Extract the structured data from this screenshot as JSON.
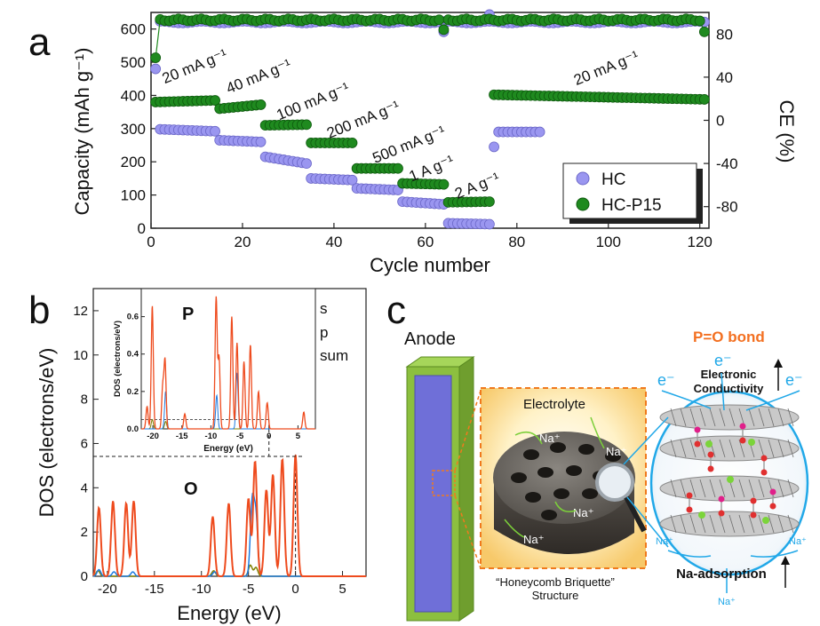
{
  "panel_labels": [
    "a",
    "b",
    "c"
  ],
  "panel_a": {
    "ylabel_left": "Capacity (mAh g⁻¹)",
    "ylabel_right": "CE (%)",
    "xlabel": "Cycle number",
    "legend": [
      {
        "name": "HC",
        "color": "#9a96f0"
      },
      {
        "name": "HC-P15",
        "color": "#1f8a1f"
      }
    ],
    "rate_labels": [
      {
        "text": "20 mA g⁻¹",
        "cycle": 3,
        "cap": 435
      },
      {
        "text": "40 mA g⁻¹",
        "cycle": 17,
        "cap": 405
      },
      {
        "text": "100 mA g⁻¹",
        "cycle": 28,
        "cap": 325
      },
      {
        "text": "200 mA g⁻¹",
        "cycle": 39,
        "cap": 270
      },
      {
        "text": "500 mA g⁻¹",
        "cycle": 49,
        "cap": 195
      },
      {
        "text": "1 A g⁻¹",
        "cycle": 57,
        "cap": 140
      },
      {
        "text": "2 A g⁻¹",
        "cycle": 67,
        "cap": 88
      },
      {
        "text": "20 mA g⁻¹",
        "cycle": 93,
        "cap": 430
      }
    ]
  },
  "chart_data": [
    {
      "type": "scatter",
      "xlabel": "Cycle number",
      "ylabel": "Capacity (mAh g⁻¹)",
      "y2label": "CE (%)",
      "xlim": [
        0,
        122
      ],
      "ylim": [
        0,
        650
      ],
      "y2lim": [
        -100,
        100
      ],
      "xticks": [
        0,
        20,
        40,
        60,
        80,
        100,
        120
      ],
      "yticks": [
        0,
        100,
        200,
        300,
        400,
        500,
        600
      ],
      "y2ticks": [
        -80,
        -40,
        0,
        40,
        80
      ],
      "series": [
        {
          "name": "HC",
          "color": "#9a96f0",
          "capacity_segments": [
            {
              "from": 1,
              "to": 1,
              "values": [
                480
              ]
            },
            {
              "from": 2,
              "to": 14,
              "start": 298,
              "end": 292
            },
            {
              "from": 15,
              "to": 24,
              "start": 265,
              "end": 260
            },
            {
              "from": 25,
              "to": 34,
              "start": 215,
              "end": 195
            },
            {
              "from": 35,
              "to": 44,
              "start": 150,
              "end": 145
            },
            {
              "from": 45,
              "to": 54,
              "start": 120,
              "end": 115
            },
            {
              "from": 55,
              "to": 64,
              "start": 80,
              "end": 72
            },
            {
              "from": 65,
              "to": 74,
              "start": 15,
              "end": 12
            },
            {
              "from": 75,
              "to": 75,
              "values": [
                245
              ]
            },
            {
              "from": 76,
              "to": 85,
              "start": 290,
              "end": 290
            }
          ],
          "ce_outliers": [
            {
              "cycle": 64,
              "ce": 82
            },
            {
              "cycle": 74,
              "ce": 98
            }
          ]
        },
        {
          "name": "HC-P15",
          "color": "#1f8a1f",
          "capacity_segments": [
            {
              "from": 1,
              "to": 14,
              "start": 380,
              "end": 385
            },
            {
              "from": 15,
              "to": 24,
              "start": 360,
              "end": 372
            },
            {
              "from": 25,
              "to": 34,
              "start": 310,
              "end": 312
            },
            {
              "from": 35,
              "to": 44,
              "start": 257,
              "end": 257
            },
            {
              "from": 45,
              "to": 54,
              "start": 180,
              "end": 180
            },
            {
              "from": 55,
              "to": 64,
              "start": 135,
              "end": 132
            },
            {
              "from": 65,
              "to": 74,
              "start": 78,
              "end": 80
            },
            {
              "from": 75,
              "to": 121,
              "start": 402,
              "end": 388
            }
          ],
          "ce_first": [
            {
              "cycle": 1,
              "ce": 58
            }
          ],
          "ce_level": 93
        }
      ]
    },
    {
      "type": "line",
      "xlabel": "Energy (eV)",
      "ylabel": "DOS (electrons/eV)",
      "xlim": [
        -21.5,
        7.5
      ],
      "ylim": [
        0,
        13
      ],
      "xticks": [
        -20,
        -15,
        -10,
        -5,
        0,
        5
      ],
      "yticks": [
        0,
        2,
        4,
        6,
        8,
        10,
        12
      ],
      "series": [
        {
          "name": "s",
          "color": "#808000"
        },
        {
          "name": "p",
          "color": "#1e7be0"
        },
        {
          "name": "sum",
          "color": "#ee4b1e"
        }
      ],
      "peaks_sum": [
        [
          -20.9,
          3.1
        ],
        [
          -19.4,
          3.4
        ],
        [
          -18.0,
          3.3
        ],
        [
          -17.2,
          3.4
        ],
        [
          -8.8,
          2.7
        ],
        [
          -7.1,
          3.3
        ],
        [
          -5.0,
          3.5
        ],
        [
          -4.3,
          5.2
        ],
        [
          -3.1,
          3.9
        ],
        [
          -2.4,
          4.6
        ],
        [
          -1.4,
          5.3
        ],
        [
          0,
          5.5
        ]
      ],
      "peaks_s": [
        [
          -21.0,
          0.25
        ],
        [
          -8.7,
          0.25
        ],
        [
          -4.8,
          0.5
        ],
        [
          -4.2,
          0.4
        ]
      ],
      "peaks_p": [
        [
          -20.9,
          0.3
        ],
        [
          -19.3,
          0.2
        ],
        [
          -17.3,
          0.2
        ],
        [
          -8.6,
          0.2
        ],
        [
          -4.6,
          3.3
        ],
        [
          -4.2,
          2.6
        ]
      ]
    },
    {
      "type": "line",
      "xlabel": "Energy (eV)",
      "ylabel": "DOS (electrons/eV)",
      "xlim": [
        -22,
        8
      ],
      "ylim": [
        0,
        0.75
      ],
      "xticks": [
        -20,
        -15,
        -10,
        -5,
        0,
        5
      ],
      "yticks": [
        0.0,
        0.2,
        0.4,
        0.6
      ],
      "peaks_sum": [
        [
          -21.0,
          0.12
        ],
        [
          -20.1,
          0.66
        ],
        [
          -18.3,
          0.22
        ],
        [
          -17.9,
          0.36
        ],
        [
          -14.5,
          0.08
        ],
        [
          -9.1,
          0.7
        ],
        [
          -8.6,
          0.38
        ],
        [
          -6.4,
          0.6
        ],
        [
          -5.5,
          0.46
        ],
        [
          -4.3,
          0.36
        ],
        [
          -3.2,
          0.45
        ],
        [
          -1.8,
          0.2
        ],
        [
          -0.3,
          0.14
        ],
        [
          6.0,
          0.09
        ]
      ],
      "peaks_p": [
        [
          -17.8,
          0.2
        ],
        [
          -9.0,
          0.18
        ],
        [
          -5.5,
          0.3
        ]
      ],
      "peaks_s": [
        [
          -20.1,
          0.05
        ],
        [
          -17.8,
          0.04
        ]
      ]
    }
  ],
  "panel_b": {
    "xlabel": "Energy (eV)",
    "ylabel": "DOS (electrons/eV)",
    "atom_label": "O",
    "legend": [
      "s",
      "p",
      "sum"
    ],
    "inset": {
      "atom_label": "P",
      "xlabel": "Energy (eV)",
      "ylabel": "DOS (electrons/eV)"
    }
  },
  "panel_c": {
    "anode_label": "Anode",
    "bond_label": "P=O bond",
    "electron_label": "e⁻",
    "conductivity_line1": "Electronic",
    "conductivity_line2": "Conductivity",
    "electrolyte_label": "Electrolyte",
    "na_ion": "Na⁺",
    "briquette_caption_1": "“Honeycomb Briquette”",
    "briquette_caption_2": "Structure",
    "adsorption_label": "Na-adsorption",
    "colors": {
      "anode_frame": "#8cbf3f",
      "anode_face": "#6f6fd8",
      "dashed_box": "#f07a1d",
      "bond_text": "#f37021",
      "arrows": "#21a8e8"
    }
  }
}
